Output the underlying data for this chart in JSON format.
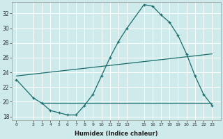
{
  "xlabel": "Humidex (Indice chaleur)",
  "bg_color": "#ceeaea",
  "grid_color": "#b8dada",
  "line_color": "#1a6b6b",
  "ylim": [
    17.5,
    33.5
  ],
  "xlim": [
    -0.5,
    24
  ],
  "yticks": [
    18,
    20,
    22,
    24,
    26,
    28,
    30,
    32
  ],
  "xtick_positions": [
    0,
    2,
    3,
    4,
    5,
    6,
    7,
    8,
    9,
    10,
    11,
    12,
    13,
    15,
    16,
    17,
    18,
    19,
    20,
    21,
    22,
    23
  ],
  "xtick_labels": [
    "0",
    "2",
    "3",
    "4",
    "5",
    "6",
    "7",
    "8",
    "9",
    "10",
    "11",
    "12",
    "13",
    "15",
    "16",
    "17",
    "18",
    "19",
    "20",
    "21",
    "22",
    "23"
  ],
  "curve1_x": [
    0,
    2,
    3,
    4,
    5,
    6,
    7,
    8,
    9,
    10,
    11,
    12,
    13,
    15,
    16,
    17,
    18,
    19,
    20,
    21,
    22,
    23
  ],
  "curve1_y": [
    23.0,
    20.5,
    19.8,
    18.8,
    18.5,
    18.2,
    18.2,
    19.5,
    21.0,
    23.5,
    26.0,
    28.2,
    30.0,
    33.2,
    33.0,
    31.8,
    30.8,
    29.0,
    26.5,
    23.5,
    21.0,
    19.5
  ],
  "curve2_x": [
    0,
    23
  ],
  "curve2_y": [
    23.5,
    26.5
  ],
  "curve3_x": [
    3,
    23
  ],
  "curve3_y": [
    19.8,
    19.8
  ]
}
